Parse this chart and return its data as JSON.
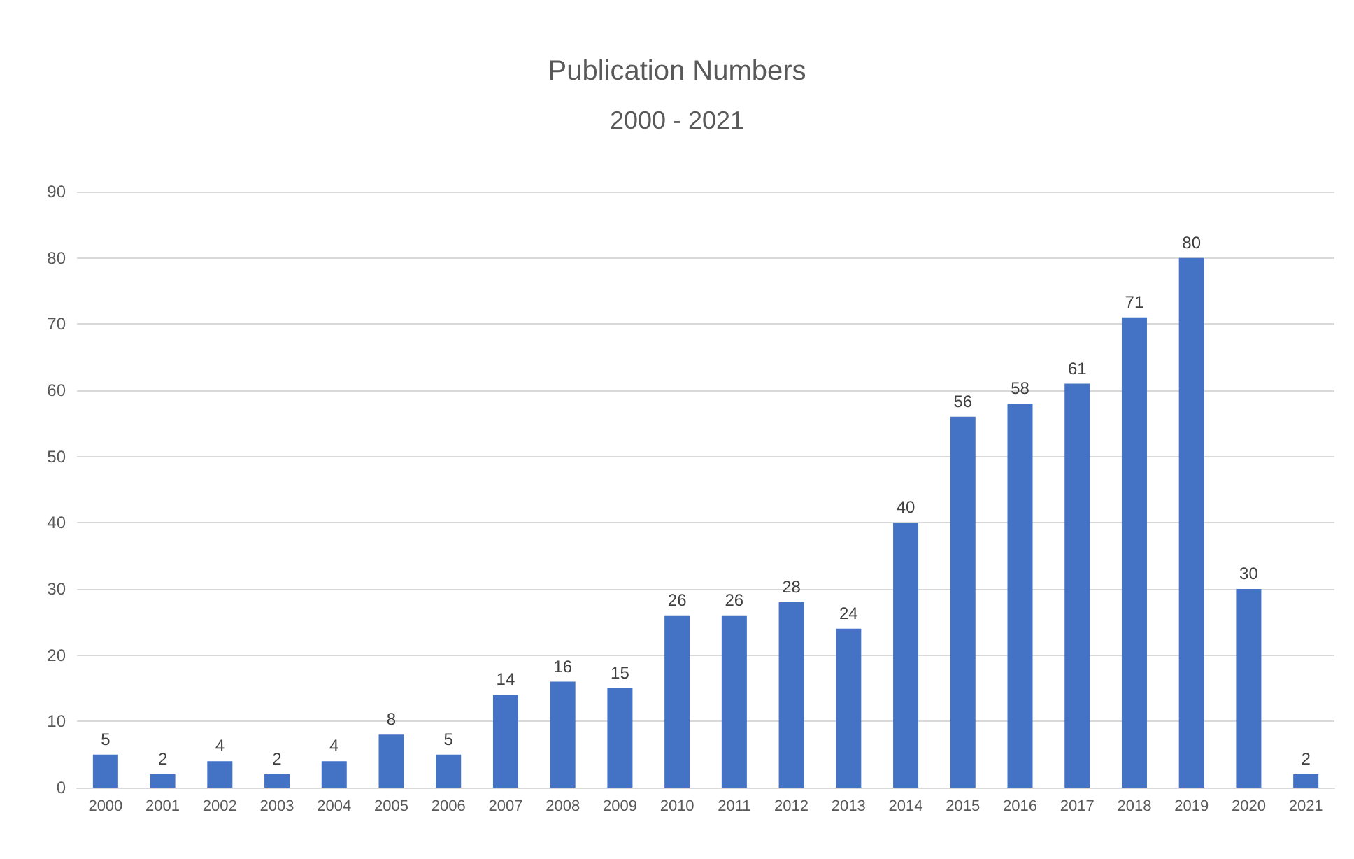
{
  "chart_data": {
    "type": "bar",
    "title": "Publication Numbers",
    "subtitle": "2000 - 2021",
    "categories": [
      "2000",
      "2001",
      "2002",
      "2003",
      "2004",
      "2005",
      "2006",
      "2007",
      "2008",
      "2009",
      "2010",
      "2011",
      "2012",
      "2013",
      "2014",
      "2015",
      "2016",
      "2017",
      "2018",
      "2019",
      "2020",
      "2021"
    ],
    "values": [
      5,
      2,
      4,
      2,
      4,
      8,
      5,
      14,
      16,
      15,
      26,
      26,
      28,
      24,
      40,
      56,
      58,
      61,
      71,
      80,
      30,
      2
    ],
    "color": "#4472c4",
    "ylim": [
      0,
      90
    ],
    "yticks": [
      0,
      10,
      20,
      30,
      40,
      50,
      60,
      70,
      80,
      90
    ],
    "grid": "y",
    "data_labels": true
  }
}
